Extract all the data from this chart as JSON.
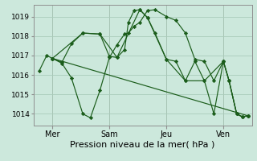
{
  "background_color": "#cce8dc",
  "grid_color": "#aaccbb",
  "line_color": "#1a5c1a",
  "xlabel": "Pression niveau de la mer( hPa )",
  "xlabel_fontsize": 8,
  "ylim": [
    1013.4,
    1019.6
  ],
  "yticks": [
    1014,
    1015,
    1016,
    1017,
    1018,
    1019
  ],
  "ytick_fontsize": 6.5,
  "xtick_labels": [
    "Mer",
    "Sam",
    "Jeu",
    "Ven"
  ],
  "xtick_positions": [
    1,
    4,
    7,
    10
  ],
  "xlim": [
    0,
    11.5
  ],
  "vline_positions": [
    1,
    4,
    7,
    10
  ],
  "line1_x": [
    0.3,
    0.7,
    1.0,
    1.5,
    2.0,
    2.6,
    3.0,
    3.5,
    4.0,
    4.4,
    4.8,
    5.0,
    5.3,
    5.6,
    6.0,
    6.4,
    7.0,
    7.5,
    8.0,
    8.5,
    9.0,
    9.5,
    10.0,
    10.3,
    10.7,
    11.0,
    11.3
  ],
  "line1_y": [
    1016.2,
    1017.0,
    1016.85,
    1016.6,
    1015.85,
    1014.0,
    1013.8,
    1015.2,
    1016.9,
    1017.55,
    1018.1,
    1018.15,
    1018.5,
    1018.7,
    1019.3,
    1019.35,
    1019.0,
    1018.8,
    1018.15,
    1016.8,
    1016.7,
    1015.7,
    1016.7,
    1015.7,
    1014.0,
    1013.85,
    1013.9
  ],
  "line2_x": [
    1.0,
    1.5,
    2.0,
    2.6,
    3.5,
    4.0,
    4.4,
    4.8,
    5.0,
    5.3,
    5.6,
    6.0,
    6.4,
    7.0,
    7.5,
    8.0,
    8.5,
    9.0,
    9.5,
    10.0,
    10.3,
    10.7,
    11.0,
    11.3
  ],
  "line2_y": [
    1016.85,
    1016.65,
    1017.6,
    1018.15,
    1018.1,
    1016.95,
    1016.9,
    1017.3,
    1018.7,
    1019.3,
    1019.35,
    1018.95,
    1018.15,
    1016.8,
    1016.7,
    1015.7,
    1016.7,
    1015.7,
    1014.0,
    1016.7,
    1015.7,
    1014.0,
    1013.85,
    1013.9
  ],
  "line3_x": [
    1.0,
    2.6,
    3.5,
    4.4,
    5.6,
    6.0,
    7.0,
    8.0,
    9.0,
    10.0,
    10.3,
    10.7,
    11.0,
    11.3
  ],
  "line3_y": [
    1016.85,
    1018.15,
    1018.1,
    1016.9,
    1019.35,
    1018.95,
    1016.8,
    1015.7,
    1015.7,
    1016.7,
    1015.7,
    1014.0,
    1013.85,
    1013.9
  ],
  "line4_x": [
    1.0,
    11.3
  ],
  "line4_y": [
    1016.85,
    1013.9
  ]
}
